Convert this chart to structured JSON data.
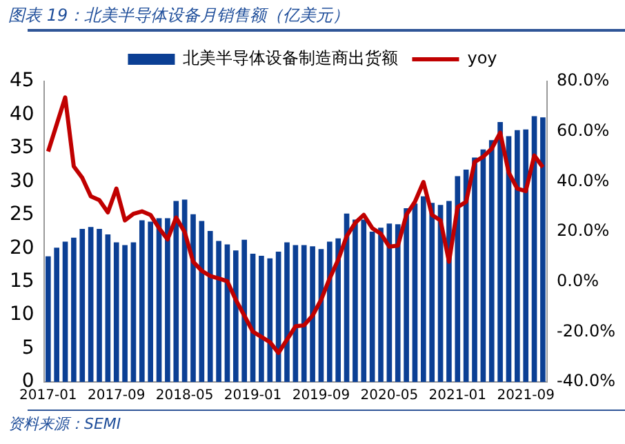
{
  "chart_data": {
    "type": "bar",
    "title": "图表 19：北美半导体设备月销售额（亿美元）",
    "annotations": [
      "资料来源：SEMI"
    ],
    "categories": [
      "2017-01",
      null,
      null,
      null,
      null,
      null,
      null,
      null,
      "2017-09",
      null,
      null,
      null,
      null,
      null,
      null,
      null,
      "2018-05",
      null,
      null,
      null,
      null,
      null,
      null,
      null,
      "2019-01",
      null,
      null,
      null,
      null,
      null,
      null,
      null,
      "2019-09",
      null,
      null,
      null,
      null,
      null,
      null,
      null,
      "2020-05",
      null,
      null,
      null,
      null,
      null,
      null,
      null,
      "2021-01",
      null,
      null,
      null,
      null,
      null,
      null,
      null,
      "2021-09",
      null,
      null
    ],
    "series": [
      {
        "name": "北美半导体设备制造商出货额",
        "color": "#0b3f94",
        "values": [
          18.8,
          20.1,
          21.0,
          21.6,
          22.9,
          23.2,
          22.9,
          22.1,
          20.9,
          20.5,
          20.9,
          24.2,
          24.0,
          24.5,
          24.5,
          27.1,
          27.3,
          25.1,
          24.1,
          22.6,
          21.1,
          20.6,
          19.7,
          21.3,
          19.2,
          18.9,
          18.5,
          19.5,
          20.9,
          20.5,
          20.5,
          20.3,
          19.9,
          21.0,
          21.5,
          25.2,
          24.3,
          24.3,
          22.5,
          23.1,
          23.7,
          23.6,
          26.0,
          26.7,
          27.8,
          26.8,
          26.5,
          27.1,
          30.8,
          31.8,
          33.6,
          34.8,
          36.2,
          38.9,
          36.8,
          37.7,
          37.8,
          39.8,
          39.6
        ]
      },
      {
        "name": "yoy",
        "type": "line",
        "axis": "y2",
        "color": "#c00000",
        "values": [
          52.0,
          62.8,
          73.6,
          46.1,
          41.5,
          34.1,
          32.6,
          27.7,
          37.2,
          24.5,
          27.1,
          28.1,
          26.7,
          21.4,
          16.9,
          25.6,
          19.9,
          8.0,
          4.4,
          2.3,
          1.3,
          0.2,
          -7.2,
          -13.5,
          -19.9,
          -22.0,
          -24.1,
          -28.4,
          -23.1,
          -17.8,
          -17.4,
          -13.5,
          -7.2,
          1.3,
          8.7,
          18.2,
          23.5,
          26.7,
          21.4,
          19.2,
          14.0,
          14.4,
          26.7,
          31.9,
          39.8,
          26.7,
          24.5,
          8.0,
          29.8,
          31.9,
          47.8,
          49.9,
          53.1,
          59.5,
          43.6,
          37.2,
          36.2,
          50.4,
          45.7
        ]
      }
    ],
    "ylim": [
      0,
      45
    ],
    "yticks": [
      0,
      5,
      10,
      15,
      20,
      25,
      30,
      35,
      40,
      45
    ],
    "y2lim": [
      -40,
      80
    ],
    "y2ticks": [
      {
        "value": -40,
        "label": "-40.0%"
      },
      {
        "value": -20,
        "label": "-20.0%"
      },
      {
        "value": 0,
        "label": "0.0%"
      },
      {
        "value": 20,
        "label": "20.0%"
      },
      {
        "value": 40,
        "label": "40.0%"
      },
      {
        "value": 60,
        "label": "60.0%"
      },
      {
        "value": 80,
        "label": "80.0%"
      }
    ],
    "grid": false,
    "legend": "top",
    "marker": "none",
    "line_style": "solid"
  }
}
